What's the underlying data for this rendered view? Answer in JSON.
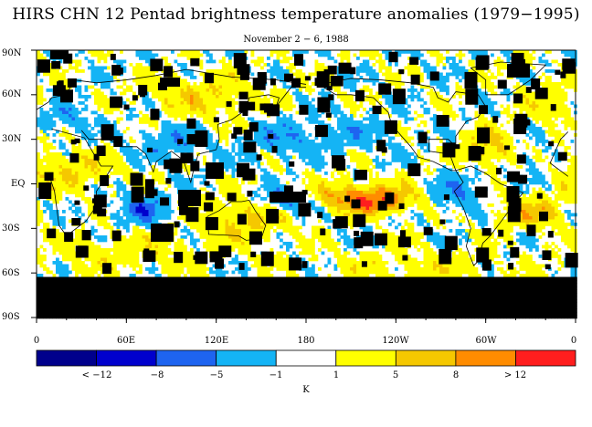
{
  "title": "HIRS CHN 12 Pentad brightness temperature anomalies (1979−1995)",
  "subtitle": "November 2 − 6, 1988",
  "lat_labels": [
    "90N",
    "60N",
    "30N",
    "EQ",
    "30S",
    "60S",
    "90S"
  ],
  "lon_labels": [
    "0",
    "60E",
    "120E",
    "180",
    "120W",
    "60W",
    "0"
  ],
  "colorbar": {
    "labels": [
      "< −12",
      "−8",
      "−5",
      "−1",
      "1",
      "5",
      "8",
      "> 12"
    ],
    "unit": "K",
    "colors": [
      "#00008c",
      "#0000cd",
      "#1e64f0",
      "#14b4f5",
      "#ffffff",
      "#ffff00",
      "#f5c800",
      "#ff8c00",
      "#ff1e1e"
    ]
  },
  "map_colors": {
    "missing": "#000000",
    "neutral": "#ffffff",
    "coast": "#000000"
  }
}
